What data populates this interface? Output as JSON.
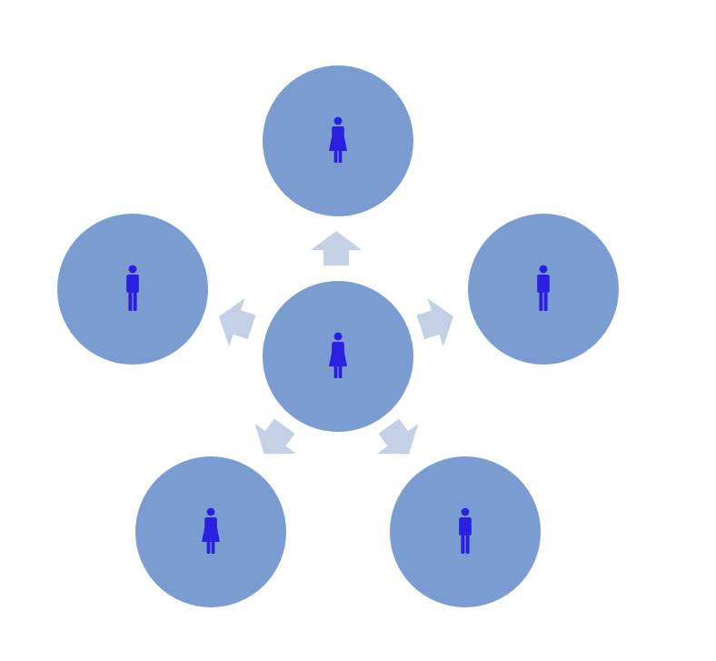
{
  "diagram": {
    "colors": {
      "background": "#ffffff",
      "node_fill": "#7a9cd0",
      "arrow_fill": "#c4d0e6",
      "person_fill": "#2b1fe0"
    },
    "center_node": {
      "icon": "woman-icon"
    },
    "outer_nodes": [
      {
        "id": "top",
        "icon": "woman-icon"
      },
      {
        "id": "right",
        "icon": "man-icon"
      },
      {
        "id": "bottom-right",
        "icon": "man-icon"
      },
      {
        "id": "bottom-left",
        "icon": "woman-icon"
      },
      {
        "id": "left",
        "icon": "man-icon"
      }
    ]
  }
}
